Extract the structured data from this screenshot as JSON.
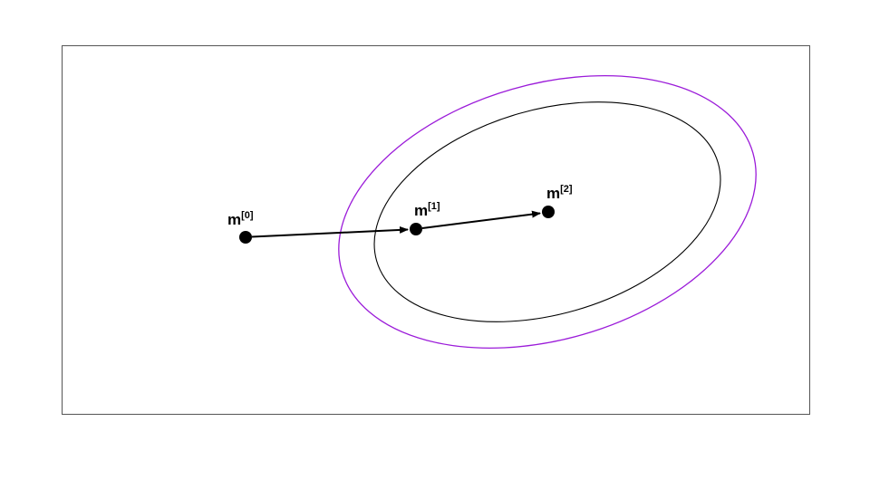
{
  "colors": {
    "frame": "#555555",
    "outer_ellipse": "#9b1bd9",
    "inner_ellipse": "#000000",
    "points": "#000000",
    "arrows": "#000000"
  },
  "points": [
    {
      "id": "m0",
      "base": "m",
      "sup": "[0]"
    },
    {
      "id": "m1",
      "base": "m",
      "sup": "[1]"
    },
    {
      "id": "m2",
      "base": "m",
      "sup": "[2]"
    }
  ],
  "arrows": [
    {
      "from": "m0",
      "to": "m1"
    },
    {
      "from": "m1",
      "to": "m2"
    }
  ]
}
